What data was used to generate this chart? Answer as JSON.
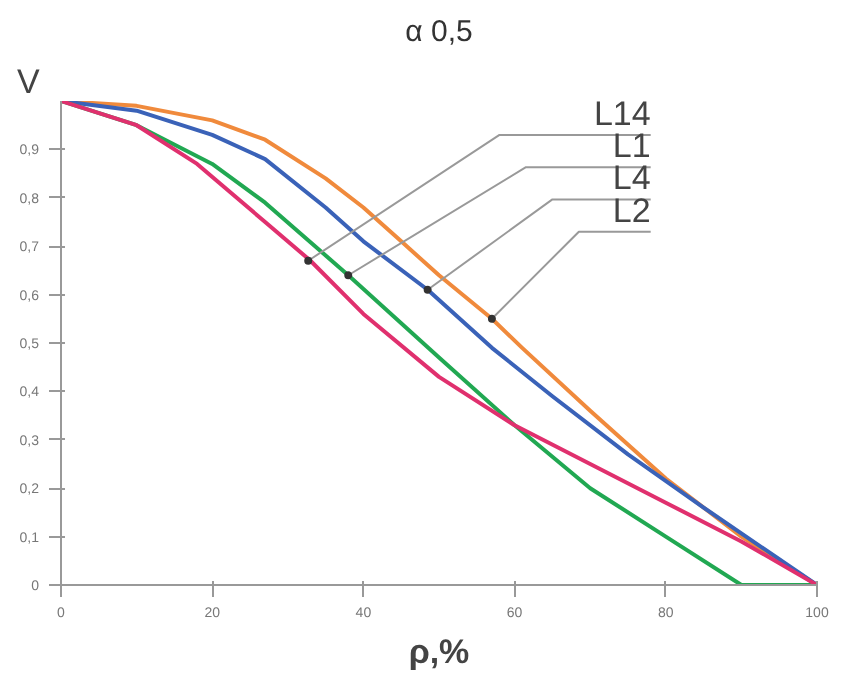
{
  "chart_data": {
    "type": "line",
    "title": "α 0,5",
    "xlabel": "ρ,%",
    "ylabel": "V",
    "xlim": [
      0,
      100
    ],
    "ylim": [
      0,
      1
    ],
    "xticks": [
      0,
      20,
      40,
      60,
      80,
      100
    ],
    "yticks": [
      0,
      {
        "value": 0.1,
        "label": "0,1"
      },
      {
        "value": 0.2,
        "label": "0,2"
      },
      {
        "value": 0.3,
        "label": "0,3"
      },
      {
        "value": 0.4,
        "label": "0,4"
      },
      {
        "value": 0.5,
        "label": "0,5"
      },
      {
        "value": 0.6,
        "label": "0,6"
      },
      {
        "value": 0.7,
        "label": "0,7"
      },
      {
        "value": 0.8,
        "label": "0,8"
      },
      {
        "value": 0.9,
        "label": "0,9"
      }
    ],
    "grid": false,
    "marker": "none",
    "line_style": "solid",
    "series": [
      {
        "color": "#f08a3c",
        "x": [
          0,
          10,
          20,
          27,
          35,
          40,
          45,
          50,
          57,
          61,
          70,
          80,
          90,
          100
        ],
        "values": [
          1,
          0.99,
          0.96,
          0.92,
          0.84,
          0.78,
          0.71,
          0.64,
          0.55,
          0.49,
          0.36,
          0.22,
          0.1,
          0
        ]
      },
      {
        "color": "#3a62b8",
        "x": [
          0,
          10,
          20,
          27,
          35,
          40,
          48.5,
          57,
          65,
          75,
          85,
          100
        ],
        "values": [
          1,
          0.98,
          0.93,
          0.88,
          0.78,
          0.71,
          0.61,
          0.49,
          0.39,
          0.27,
          0.16,
          0
        ]
      },
      {
        "color": "#21a852",
        "x": [
          0,
          10,
          20,
          27,
          38,
          50,
          60,
          70,
          80,
          90,
          100
        ],
        "values": [
          1,
          0.95,
          0.87,
          0.79,
          0.64,
          0.47,
          0.33,
          0.2,
          0.1,
          0,
          0
        ]
      },
      {
        "color": "#e0306e",
        "x": [
          0,
          10,
          18,
          27,
          33,
          40,
          50,
          60,
          70,
          80,
          90,
          100
        ],
        "values": [
          1,
          0.95,
          0.87,
          0.75,
          0.67,
          0.56,
          0.43,
          0.33,
          0.25,
          0.17,
          0.09,
          0
        ]
      }
    ],
    "annotations": [
      {
        "text": "L14",
        "x": 32.7,
        "y": 0.67
      },
      {
        "text": "L1",
        "x": 38,
        "y": 0.64
      },
      {
        "text": "L4",
        "x": 48.5,
        "y": 0.61
      },
      {
        "text": "L2",
        "x": 57,
        "y": 0.55
      }
    ]
  }
}
